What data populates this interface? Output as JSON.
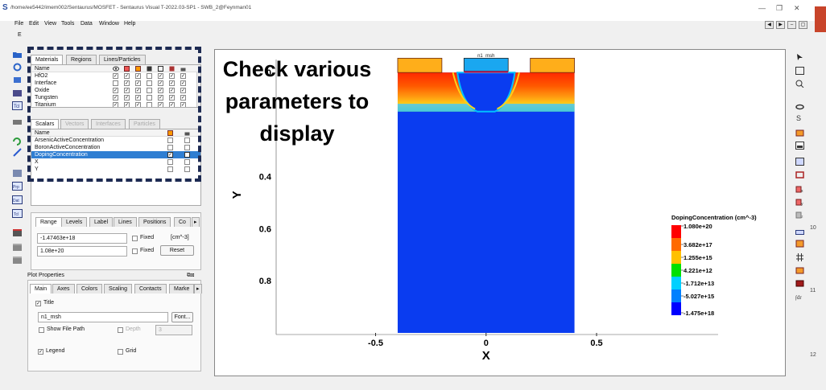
{
  "window": {
    "title": "/home/ee5442/imem002/Sentaurus/MOSFET - Sentaurus Visual T-2022.03-SP1 - SWB_2@Feynman01",
    "app_icon": "S"
  },
  "menu": [
    "File",
    "Edit",
    "View",
    "Tools",
    "Data",
    "Window",
    "Help"
  ],
  "toolrow_label": "E",
  "materials_panel": {
    "tabs": [
      "Materials",
      "Regions",
      "Lines/Particles"
    ],
    "header": "Name",
    "rows": [
      {
        "name": "HfO2",
        "checks": [
          true,
          true,
          true,
          false,
          true,
          true,
          true
        ]
      },
      {
        "name": "Interface",
        "checks": [
          false,
          true,
          true,
          false,
          true,
          true,
          true
        ]
      },
      {
        "name": "Oxide",
        "checks": [
          true,
          true,
          true,
          false,
          true,
          true,
          true
        ]
      },
      {
        "name": "Tungsten",
        "checks": [
          true,
          true,
          true,
          false,
          true,
          true,
          true
        ]
      },
      {
        "name": "Titanium",
        "checks": [
          true,
          true,
          true,
          false,
          true,
          true,
          true
        ]
      }
    ]
  },
  "scalars_panel": {
    "tabs": [
      "Scalars",
      "Vectors",
      "Interfaces",
      "Particles"
    ],
    "header": "Name",
    "rows": [
      {
        "name": "ArsenicActiveConcentration",
        "checked": false,
        "selected": false
      },
      {
        "name": "BoronActiveConcentration",
        "checked": false,
        "selected": false
      },
      {
        "name": "DopingConcentration",
        "checked": true,
        "selected": true
      },
      {
        "name": "X",
        "checked": false,
        "selected": false
      },
      {
        "name": "Y",
        "checked": false,
        "selected": false
      }
    ]
  },
  "range_panel": {
    "tabs": [
      "Range",
      "Levels",
      "Label",
      "Lines",
      "Positions",
      "Co"
    ],
    "min_value": "-1.47463e+18",
    "max_value": "1.08e+20",
    "fixed_label": "Fixed",
    "unit": "[cm^-3]",
    "reset_label": "Reset"
  },
  "plot_properties": {
    "title": "Plot Properties",
    "tabs": [
      "Main",
      "Axes",
      "Colors",
      "Scaling",
      "Contacts",
      "Marke"
    ],
    "title_checkbox": "Title",
    "title_value": "n1_msh",
    "font_button": "Font...",
    "show_file_path": "Show File Path",
    "depth_label": "Depth",
    "depth_value": "3",
    "legend_label": "Legend",
    "grid_label": "Grid"
  },
  "overlay_text": [
    "Check various",
    "parameters to",
    "display"
  ],
  "chart_data": {
    "type": "heatmap",
    "title": "n1_msh",
    "xlabel": "X",
    "ylabel": "Y",
    "x_ticks": [
      "-0.5",
      "0",
      "0.5"
    ],
    "y_ticks": [
      "0",
      "0.4",
      "0.6",
      "0.8"
    ],
    "xlim": [
      -0.95,
      1.05
    ],
    "ylim": [
      -0.05,
      1.0
    ],
    "legend": {
      "title": "DopingConcentration (cm^-3)",
      "labels": [
        "1.080e+20",
        "3.682e+17",
        "1.255e+15",
        "4.221e+12",
        "-1.712e+13",
        "-5.027e+15",
        "-1.475e+18"
      ],
      "colors": [
        "#ff0000",
        "#ff6a00",
        "#ffc000",
        "#00e000",
        "#00d0ff",
        "#0080ff",
        "#0000ff"
      ]
    },
    "colors": {
      "substrate": "#0a3cf0",
      "gate_oxide_cap": "#1aa7f0",
      "contact": "#ffae1a",
      "surface_high": "#ff2800"
    }
  },
  "right_numbers": [
    "10",
    "11",
    "12"
  ]
}
